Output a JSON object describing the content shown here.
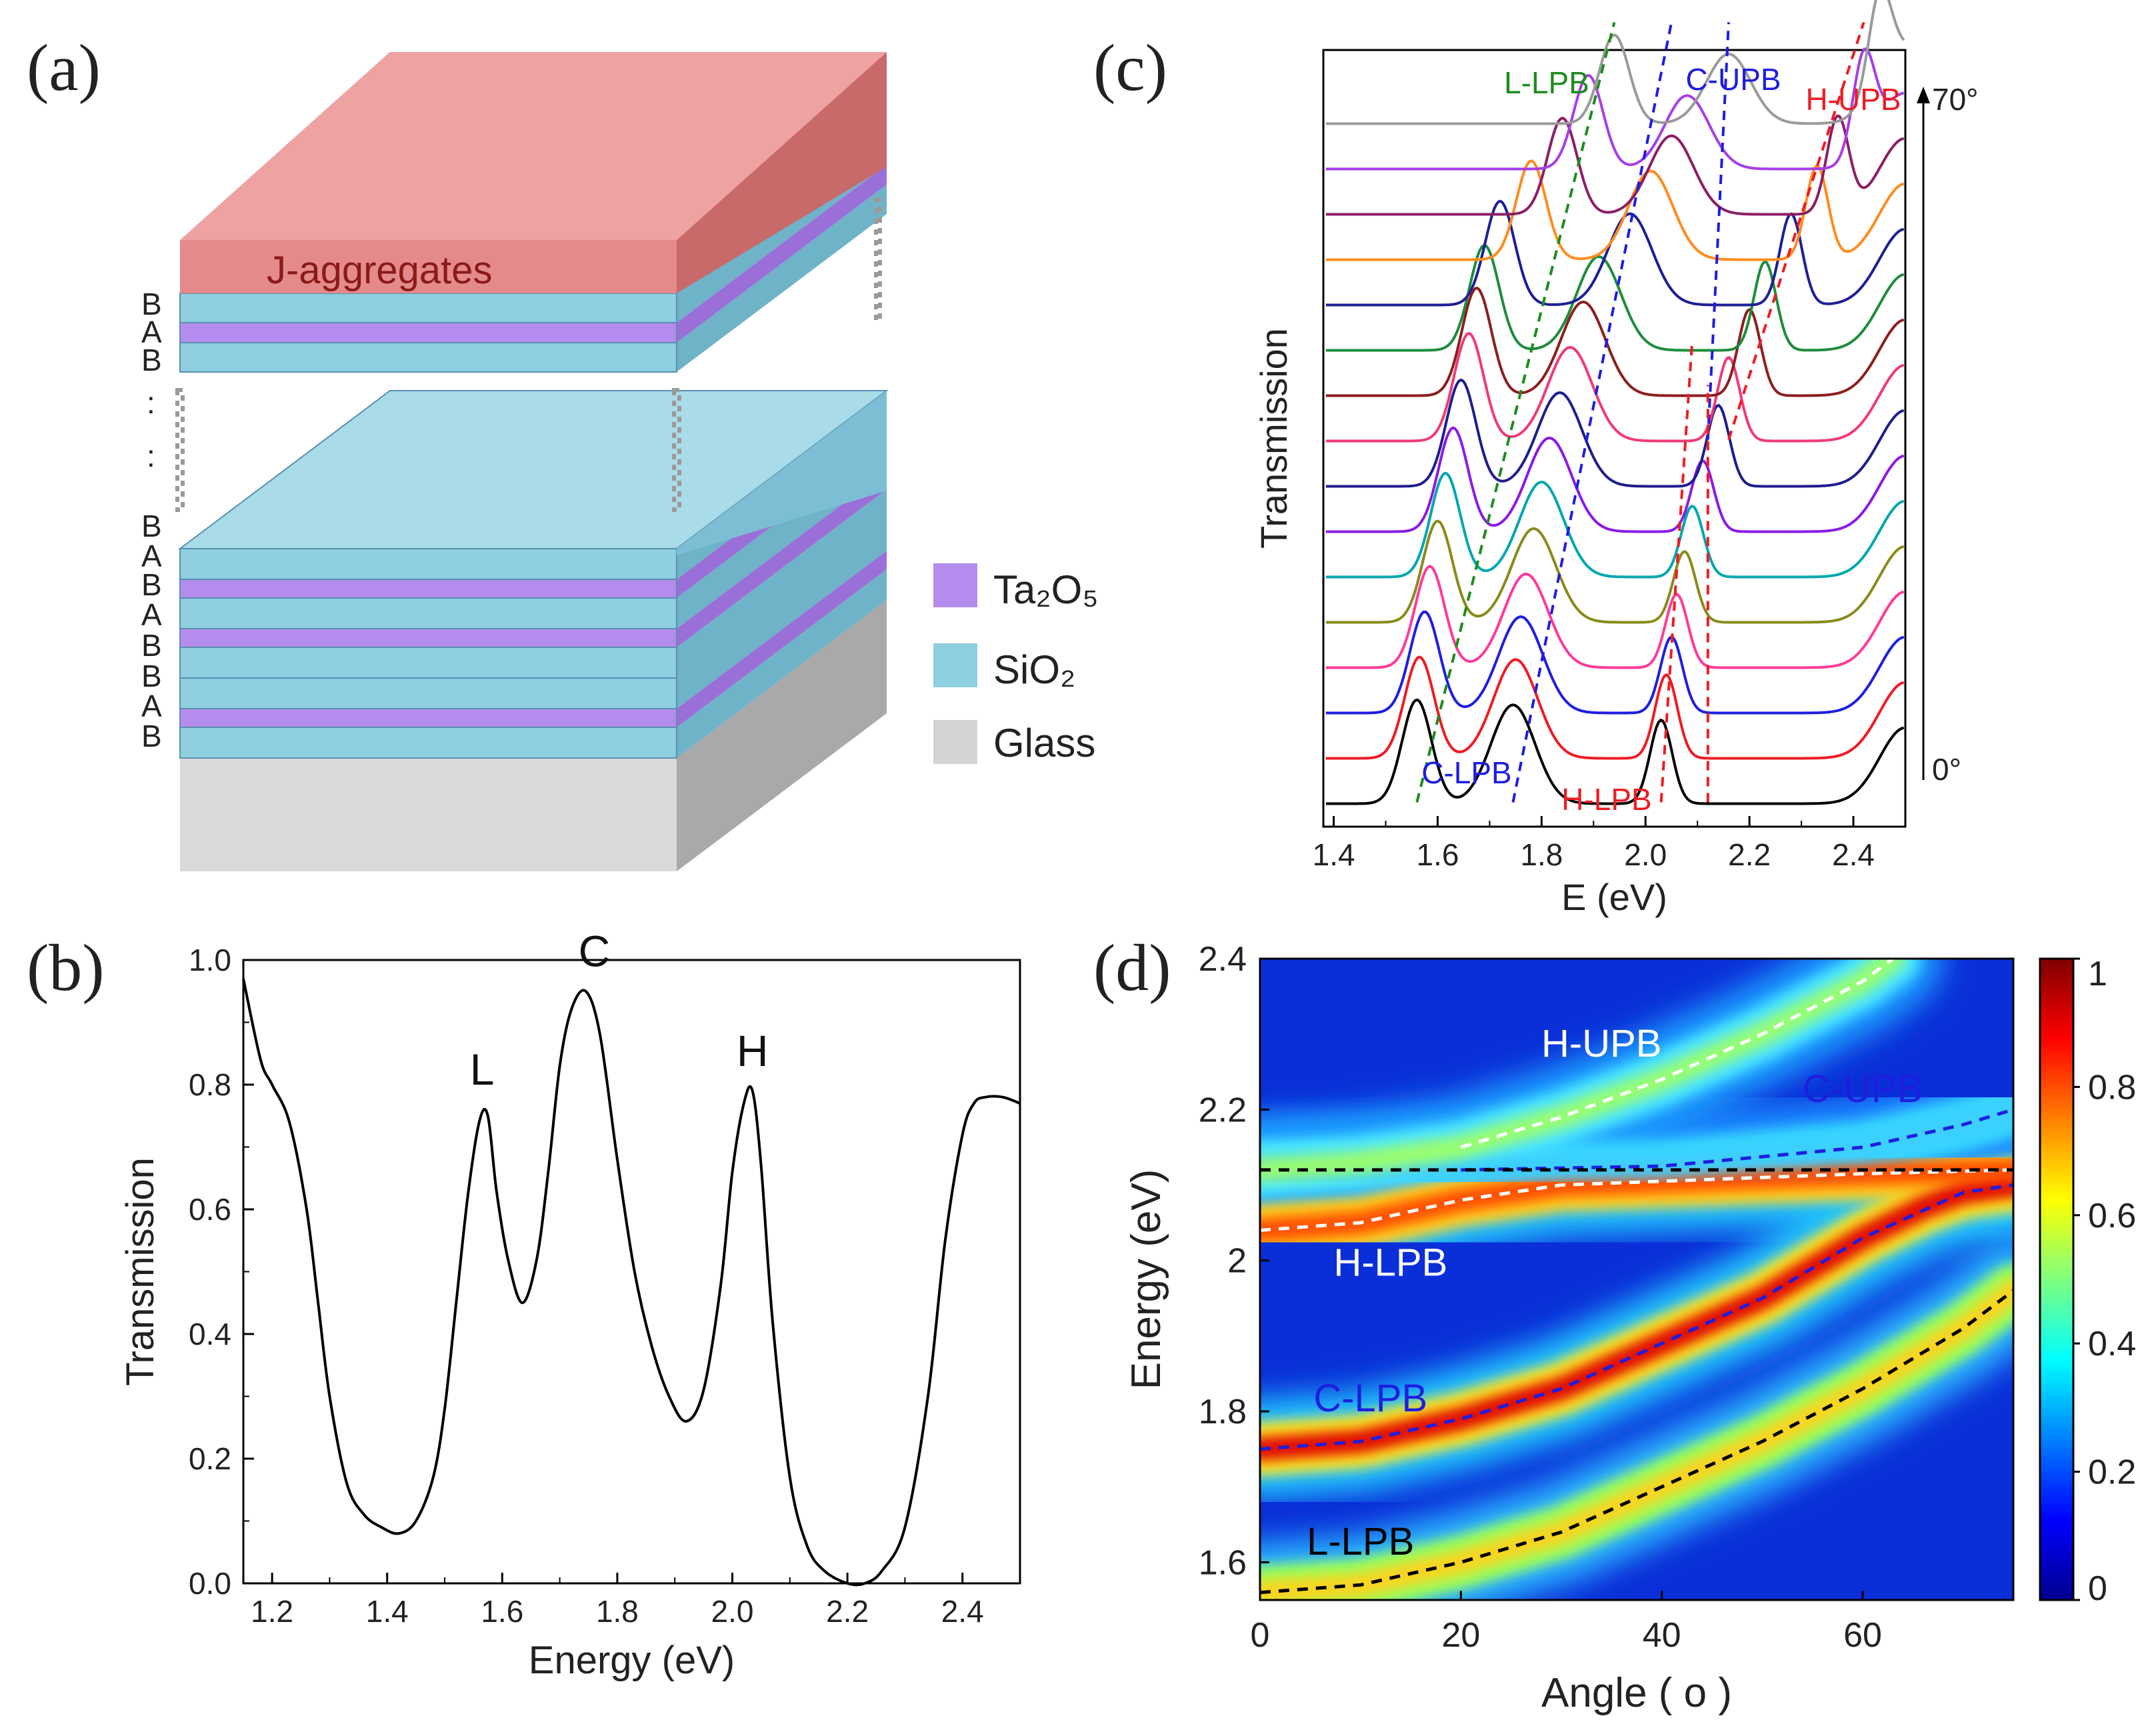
{
  "panels": {
    "a": {
      "tag": "(a)",
      "top_layer_label": "J-aggregates",
      "upper_stack_labels": [
        "B",
        "A",
        "B"
      ],
      "lower_stack_labels": [
        "B",
        "A",
        "B",
        "A",
        "B",
        "B",
        "A",
        "B"
      ],
      "ellipsis": ":",
      "legend": [
        {
          "label": "Ta₂O₅",
          "color": "#b48cee"
        },
        {
          "label": "SiO₂",
          "color": "#8ecfe0"
        },
        {
          "label": "Glass",
          "color": "#d3d3d3"
        }
      ],
      "colors": {
        "j_aggregates": "#ec8f8f",
        "sio2": "#8ecfe0",
        "ta2o5": "#b48cee",
        "glass": "#d9d9d9"
      }
    },
    "b": {
      "tag": "(b)"
    },
    "c": {
      "tag": "(c)"
    },
    "d": {
      "tag": "(d)"
    }
  },
  "chart_data": [
    {
      "id": "b",
      "type": "line",
      "xlabel": "Energy (eV)",
      "ylabel": "Transmission",
      "xlim": [
        1.15,
        2.5
      ],
      "ylim": [
        0,
        1.0
      ],
      "xticks": [
        1.2,
        1.4,
        1.6,
        1.8,
        2.0,
        2.2,
        2.4
      ],
      "xtick_labels": [
        "1.2",
        "1.4",
        "1.6",
        "1.8",
        "2.0",
        "2.2",
        "2.4"
      ],
      "yticks": [
        0,
        0.2,
        0.4,
        0.6,
        0.8,
        1.0
      ],
      "ytick_labels": [
        "0.0",
        "0.2",
        "0.4",
        "0.6",
        "0.8",
        "1.0"
      ],
      "series": [
        {
          "color": "#000000",
          "x": [
            1.15,
            1.18,
            1.2,
            1.23,
            1.26,
            1.28,
            1.3,
            1.33,
            1.36,
            1.39,
            1.42,
            1.45,
            1.48,
            1.5,
            1.52,
            1.54,
            1.56,
            1.575,
            1.59,
            1.61,
            1.635,
            1.66,
            1.68,
            1.7,
            1.72,
            1.745,
            1.77,
            1.8,
            1.83,
            1.86,
            1.89,
            1.92,
            1.95,
            1.98,
            2.0,
            2.02,
            2.035,
            2.05,
            2.07,
            2.1,
            2.13,
            2.16,
            2.2,
            2.23,
            2.26,
            2.3,
            2.34,
            2.37,
            2.4,
            2.42,
            2.44,
            2.47,
            2.5
          ],
          "y": [
            0.97,
            0.84,
            0.8,
            0.74,
            0.6,
            0.45,
            0.3,
            0.16,
            0.11,
            0.09,
            0.08,
            0.1,
            0.17,
            0.28,
            0.45,
            0.62,
            0.74,
            0.75,
            0.63,
            0.52,
            0.45,
            0.52,
            0.66,
            0.83,
            0.92,
            0.95,
            0.88,
            0.68,
            0.5,
            0.38,
            0.3,
            0.26,
            0.31,
            0.48,
            0.66,
            0.77,
            0.79,
            0.67,
            0.42,
            0.17,
            0.06,
            0.02,
            0.0,
            0.0,
            0.02,
            0.09,
            0.3,
            0.55,
            0.72,
            0.77,
            0.78,
            0.78,
            0.77
          ]
        }
      ],
      "annotations": [
        {
          "text": "L",
          "x": 1.565,
          "y": 0.8
        },
        {
          "text": "C",
          "x": 1.76,
          "y": 0.99
        },
        {
          "text": "H",
          "x": 2.035,
          "y": 0.83
        }
      ]
    },
    {
      "id": "c",
      "type": "line",
      "xlabel": "E (eV)",
      "ylabel": "Transmission",
      "xlim": [
        1.38,
        2.5
      ],
      "xticks": [
        1.4,
        1.6,
        1.8,
        2.0,
        2.2,
        2.4
      ],
      "xtick_labels": [
        "1.4",
        "1.6",
        "1.8",
        "2.0",
        "2.2",
        "2.4"
      ],
      "angle_range_labels": {
        "top": "70°",
        "bottom": "0°"
      },
      "series": [
        {
          "color": "#000000",
          "peaks": [
            [
              1.56,
              0.82
            ],
            [
              1.745,
              0.78
            ],
            [
              2.03,
              0.66
            ]
          ]
        },
        {
          "color": "#ee1c24",
          "peaks": [
            [
              1.565,
              0.8
            ],
            [
              1.75,
              0.78
            ],
            [
              2.04,
              0.66
            ]
          ]
        },
        {
          "color": "#1e1ee0",
          "peaks": [
            [
              1.575,
              0.8
            ],
            [
              1.76,
              0.76
            ],
            [
              2.05,
              0.6
            ]
          ]
        },
        {
          "color": "#ff3a9a",
          "peaks": [
            [
              1.585,
              0.8
            ],
            [
              1.77,
              0.74
            ],
            [
              2.06,
              0.58
            ]
          ]
        },
        {
          "color": "#8a8a1c",
          "peaks": [
            [
              1.6,
              0.8
            ],
            [
              1.785,
              0.74
            ],
            [
              2.075,
              0.56
            ]
          ]
        },
        {
          "color": "#00a6b0",
          "peaks": [
            [
              1.615,
              0.82
            ],
            [
              1.8,
              0.75
            ],
            [
              2.09,
              0.56
            ]
          ]
        },
        {
          "color": "#8c1ae6",
          "peaks": [
            [
              1.63,
              0.82
            ],
            [
              1.815,
              0.74
            ],
            [
              2.11,
              0.56
            ]
          ]
        },
        {
          "color": "#1e1e8c",
          "peaks": [
            [
              1.645,
              0.84
            ],
            [
              1.835,
              0.74
            ],
            [
              2.14,
              0.64
            ]
          ]
        },
        {
          "color": "#f03a78",
          "peaks": [
            [
              1.66,
              0.85
            ],
            [
              1.855,
              0.74
            ],
            [
              2.16,
              0.66
            ]
          ]
        },
        {
          "color": "#8c1e1e",
          "peaks": [
            [
              1.675,
              0.85
            ],
            [
              1.88,
              0.74
            ],
            [
              2.2,
              0.68
            ]
          ]
        },
        {
          "color": "#1e8c3c",
          "peaks": [
            [
              1.69,
              0.83
            ],
            [
              1.91,
              0.74
            ],
            [
              2.23,
              0.7
            ]
          ]
        },
        {
          "color": "#1e1e96",
          "peaks": [
            [
              1.72,
              0.82
            ],
            [
              1.97,
              0.72
            ],
            [
              2.28,
              0.72
            ]
          ]
        },
        {
          "color": "#ff8c1e",
          "peaks": [
            [
              1.78,
              0.78
            ],
            [
              2.01,
              0.7
            ],
            [
              2.33,
              0.74
            ]
          ]
        },
        {
          "color": "#8c1e64",
          "peaks": [
            [
              1.84,
              0.76
            ],
            [
              2.05,
              0.62
            ],
            [
              2.37,
              0.76
            ]
          ]
        },
        {
          "color": "#a83ee8",
          "peaks": [
            [
              1.89,
              0.74
            ],
            [
              2.08,
              0.58
            ],
            [
              2.42,
              0.78
            ]
          ]
        },
        {
          "color": "#9a9a9a",
          "peaks": [
            [
              1.94,
              0.7
            ],
            [
              2.16,
              0.55
            ],
            [
              2.45,
              0.7
            ]
          ]
        }
      ],
      "branch_labels": [
        {
          "text": "L-LPB",
          "color": "#1e8c1e"
        },
        {
          "text": "C-UPB",
          "color": "#1e1ee0"
        },
        {
          "text": "H-UPB",
          "color": "#ee1c24"
        },
        {
          "text": "C-LPB",
          "color": "#1e1ee0"
        },
        {
          "text": "H-LPB",
          "color": "#ee1c24"
        }
      ],
      "guides": [
        {
          "name": "L-LPB",
          "color": "#1e8c1e",
          "from": [
            1.56,
            0
          ],
          "to": [
            1.94,
            15
          ]
        },
        {
          "name": "C-LPB",
          "color": "#1e1ee0",
          "from": [
            1.745,
            0
          ],
          "to": [
            2.05,
            15
          ]
        },
        {
          "name": "C-UPB",
          "color": "#1e1ee0",
          "from": [
            2.12,
            8
          ],
          "to": [
            2.16,
            15
          ]
        },
        {
          "name": "H-LPB",
          "color": "#ee1c24",
          "from": [
            2.03,
            0
          ],
          "to": [
            2.09,
            8
          ]
        },
        {
          "name": "H-UPB-lower",
          "color": "#ee1c24",
          "from": [
            2.12,
            0
          ],
          "to": [
            2.12,
            7
          ]
        },
        {
          "name": "H-UPB",
          "color": "#ee1c24",
          "from": [
            2.16,
            8
          ],
          "to": [
            2.42,
            15
          ]
        }
      ]
    },
    {
      "id": "d",
      "type": "heatmap",
      "xlabel": "Angle ( o )",
      "ylabel": "Energy (eV)",
      "xlim": [
        0,
        75
      ],
      "ylim": [
        1.55,
        2.4
      ],
      "xticks": [
        0,
        20,
        40,
        60
      ],
      "xtick_labels": [
        "0",
        "20",
        "40",
        "60"
      ],
      "yticks": [
        1.6,
        1.8,
        2.0,
        2.2,
        2.4
      ],
      "ytick_labels": [
        "1.6",
        "1.8",
        "2",
        "2.2",
        "2.4"
      ],
      "colorbar": {
        "min": 0,
        "max": 1,
        "ticks": [
          0,
          0.2,
          0.4,
          0.6,
          0.8,
          1
        ],
        "tick_labels": [
          "0",
          "0.2",
          "0.4",
          "0.6",
          "0.8",
          "1"
        ],
        "colormap": "jet"
      },
      "bands": [
        {
          "name": "L-LPB",
          "x": [
            0,
            10,
            20,
            30,
            40,
            50,
            60,
            70,
            75
          ],
          "y": [
            1.56,
            1.57,
            1.6,
            1.64,
            1.7,
            1.76,
            1.83,
            1.91,
            1.96
          ],
          "peak": 0.72
        },
        {
          "name": "C-LPB",
          "x": [
            0,
            10,
            20,
            30,
            40,
            50,
            60,
            66,
            70,
            75
          ],
          "y": [
            1.75,
            1.76,
            1.79,
            1.83,
            1.89,
            1.95,
            2.03,
            2.07,
            2.09,
            2.1
          ],
          "peak": 1.0
        },
        {
          "name": "H-LPB",
          "x": [
            0,
            10,
            20,
            30,
            40,
            50,
            60,
            75
          ],
          "y": [
            2.04,
            2.05,
            2.08,
            2.1,
            2.105,
            2.11,
            2.115,
            2.12
          ],
          "peak": 0.85
        },
        {
          "name": "C-UPB",
          "x": [
            0,
            20,
            40,
            60,
            70,
            75
          ],
          "y": [
            2.12,
            2.12,
            2.125,
            2.15,
            2.18,
            2.2
          ],
          "peak": 0.35
        },
        {
          "name": "H-UPB",
          "x": [
            0,
            10,
            20,
            30,
            40,
            50,
            60,
            63
          ],
          "y": [
            2.12,
            2.13,
            2.15,
            2.19,
            2.24,
            2.3,
            2.37,
            2.4
          ],
          "peak": 0.6
        }
      ],
      "dashed_lines": [
        {
          "name": "H-UPB",
          "color": "#ffffff",
          "x": [
            20,
            30,
            40,
            50,
            60,
            63
          ],
          "y": [
            2.15,
            2.19,
            2.24,
            2.3,
            2.37,
            2.4
          ]
        },
        {
          "name": "H-LPB",
          "color": "#ffffff",
          "x": [
            0,
            10,
            20,
            30,
            40,
            50,
            60,
            75
          ],
          "y": [
            2.04,
            2.05,
            2.08,
            2.1,
            2.105,
            2.11,
            2.115,
            2.12
          ]
        },
        {
          "name": "C-UPB",
          "color": "#1e1ee0",
          "x": [
            20,
            40,
            60,
            70,
            75
          ],
          "y": [
            2.12,
            2.125,
            2.15,
            2.18,
            2.2
          ]
        },
        {
          "name": "C-LPB",
          "color": "#1e1ee0",
          "x": [
            0,
            10,
            20,
            30,
            40,
            50,
            60,
            70,
            75
          ],
          "y": [
            1.75,
            1.76,
            1.79,
            1.83,
            1.89,
            1.95,
            2.03,
            2.09,
            2.1
          ]
        },
        {
          "name": "L-LPB",
          "color": "#000000",
          "x": [
            0,
            10,
            20,
            30,
            40,
            50,
            60,
            70,
            75
          ],
          "y": [
            1.56,
            1.57,
            1.6,
            1.64,
            1.7,
            1.76,
            1.83,
            1.91,
            1.96
          ]
        },
        {
          "name": "exciton",
          "color": "#000000",
          "x": [
            0,
            75
          ],
          "y": [
            2.12,
            2.12
          ]
        }
      ],
      "annotations": [
        {
          "text": "H-UPB",
          "x": 34,
          "y": 2.27,
          "color": "#ffffff"
        },
        {
          "text": "C-UPB",
          "x": 60,
          "y": 2.21,
          "color": "#1e1ee0"
        },
        {
          "text": "H-LPB",
          "x": 13,
          "y": 1.98,
          "color": "#ffffff"
        },
        {
          "text": "C-LPB",
          "x": 11,
          "y": 1.8,
          "color": "#1e1ee0"
        },
        {
          "text": "L-LPB",
          "x": 10,
          "y": 1.61,
          "color": "#000000"
        }
      ]
    }
  ]
}
